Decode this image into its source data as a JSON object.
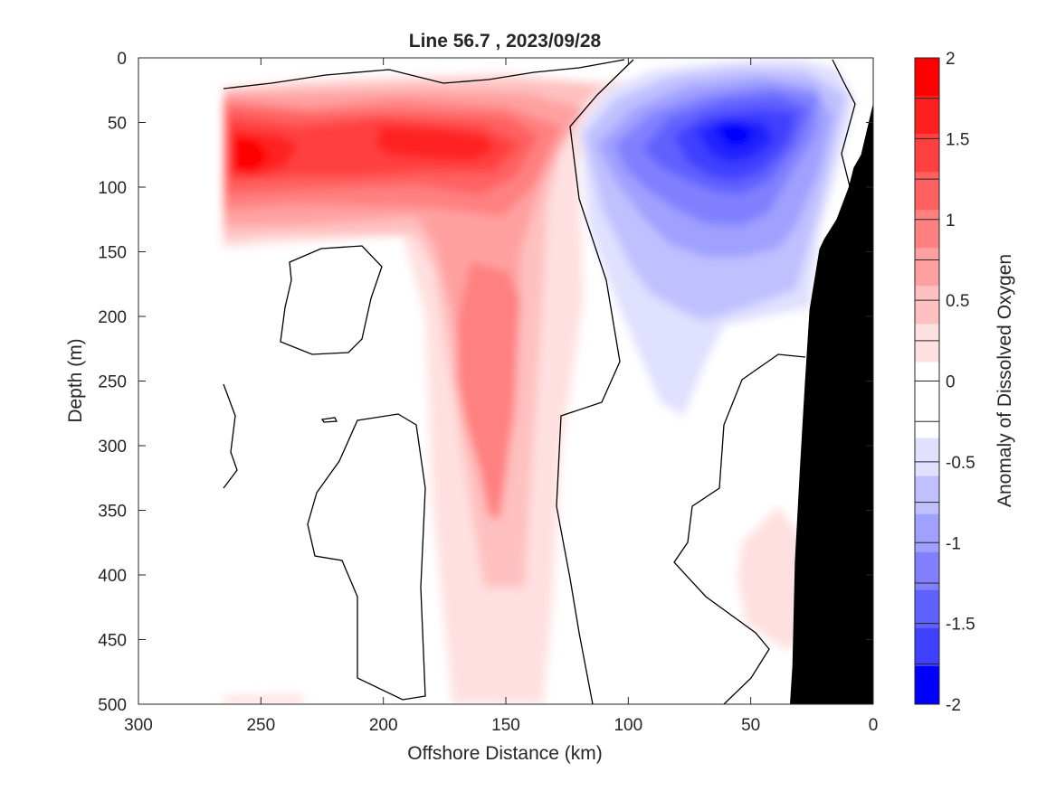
{
  "chart_data": {
    "type": "heatmap",
    "title": "Line 56.7 , 2023/09/28",
    "xlabel": "Offshore Distance (km)",
    "ylabel": "Depth (m)",
    "colorbar_label": "Anomaly of Dissolved Oxygen",
    "xlim": [
      300,
      0
    ],
    "ylim": [
      0,
      500
    ],
    "clim": [
      -2,
      2
    ],
    "x_ticks": [
      300,
      250,
      200,
      150,
      100,
      50,
      0
    ],
    "y_ticks": [
      0,
      50,
      100,
      150,
      200,
      250,
      300,
      350,
      400,
      450,
      500
    ],
    "colorbar_ticks": [
      2,
      1.5,
      1,
      0.5,
      0,
      -0.5,
      -1,
      -1.5,
      -2
    ],
    "colorbar_levels": [
      2,
      1.75,
      1.5,
      1.25,
      1,
      0.75,
      0.5,
      0.25,
      0,
      -0.25,
      -0.5,
      -0.75,
      -1,
      -1.25,
      -1.5,
      -1.75,
      -2
    ],
    "colors": {
      "level_colors_top_to_bottom": [
        "#ff0000",
        "#ff2020",
        "#ff4040",
        "#ff6060",
        "#ff8080",
        "#ffa0a0",
        "#ffc0c0",
        "#ffe0e0",
        "#ffffff",
        "#ffffff",
        "#e0e0ff",
        "#c0c0ff",
        "#a0a0ff",
        "#8080ff",
        "#6060ff",
        "#4040ff",
        "#0000ff"
      ],
      "bathymetry": "#000000",
      "contour_zero": "#000000"
    },
    "regions": [
      {
        "name": "surface-positive-anomaly",
        "sign": "positive",
        "x_range": [
          265,
          130
        ],
        "depth_range": [
          25,
          150
        ],
        "peak_value": 2,
        "peak_at": [
          258,
          75
        ]
      },
      {
        "name": "secondary-positive-core",
        "sign": "positive",
        "x_range": [
          210,
          150
        ],
        "depth_range": [
          45,
          100
        ],
        "peak_value": 1.75,
        "peak_at": [
          173,
          62
        ]
      },
      {
        "name": "deep-positive-tongue",
        "sign": "positive",
        "x_range": [
          185,
          130
        ],
        "depth_range": [
          100,
          500
        ],
        "peak_value": 1,
        "peak_at": [
          155,
          250
        ]
      },
      {
        "name": "coastal-negative-anomaly",
        "sign": "negative",
        "x_range": [
          125,
          18
        ],
        "depth_range": [
          10,
          275
        ],
        "peak_value": -2,
        "peak_at": [
          58,
          55
        ]
      },
      {
        "name": "nearshore-deep-positive",
        "sign": "positive",
        "x_range": [
          55,
          30
        ],
        "depth_range": [
          320,
          475
        ],
        "peak_value": 0.5,
        "peak_at": [
          42,
          390
        ]
      }
    ],
    "bathymetry_profile": [
      [
        0,
        35
      ],
      [
        5,
        75
      ],
      [
        8,
        85
      ],
      [
        10,
        100
      ],
      [
        15,
        125
      ],
      [
        20,
        140
      ],
      [
        22,
        148
      ],
      [
        26,
        195
      ],
      [
        28,
        255
      ],
      [
        30,
        320
      ],
      [
        32,
        390
      ],
      [
        33,
        470
      ],
      [
        34,
        500
      ]
    ],
    "grid": false,
    "legend": "colorbar right"
  }
}
